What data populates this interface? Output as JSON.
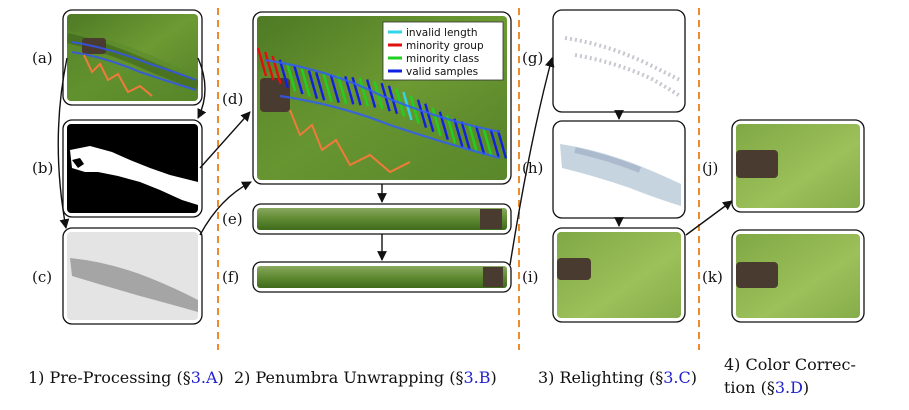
{
  "panel_labels": {
    "a": "(a)",
    "b": "(b)",
    "c": "(c)",
    "d": "(d)",
    "e": "(e)",
    "f": "(f)",
    "g": "(g)",
    "h": "(h)",
    "i": "(i)",
    "j": "(j)",
    "k": "(k)"
  },
  "legend": [
    {
      "label": "invalid length",
      "color": "#33d6e6"
    },
    {
      "label": "minority group",
      "color": "#e01010"
    },
    {
      "label": "minority class",
      "color": "#20d020"
    },
    {
      "label": "valid samples",
      "color": "#1020e0"
    }
  ],
  "stages": [
    {
      "name": "1) Pre-Processing (§",
      "ref": "3.A",
      "close": ")"
    },
    {
      "name": "2) Penumbra Unwrapping (§",
      "ref": "3.B",
      "close": ")"
    },
    {
      "name": "3) Relighting (§",
      "ref": "3.C",
      "close": ")"
    },
    {
      "line1": "4) Color Correc-",
      "line2_pre": "tion (§",
      "ref": "3.D",
      "close": ")"
    }
  ],
  "colors": {
    "grass_dark": "#3f6a1e",
    "grass_light": "#7aa63a",
    "separator": "#f08a2a",
    "stage_ref": "#2222cc",
    "mask_white": "#ffffff",
    "mask_black": "#000000"
  }
}
